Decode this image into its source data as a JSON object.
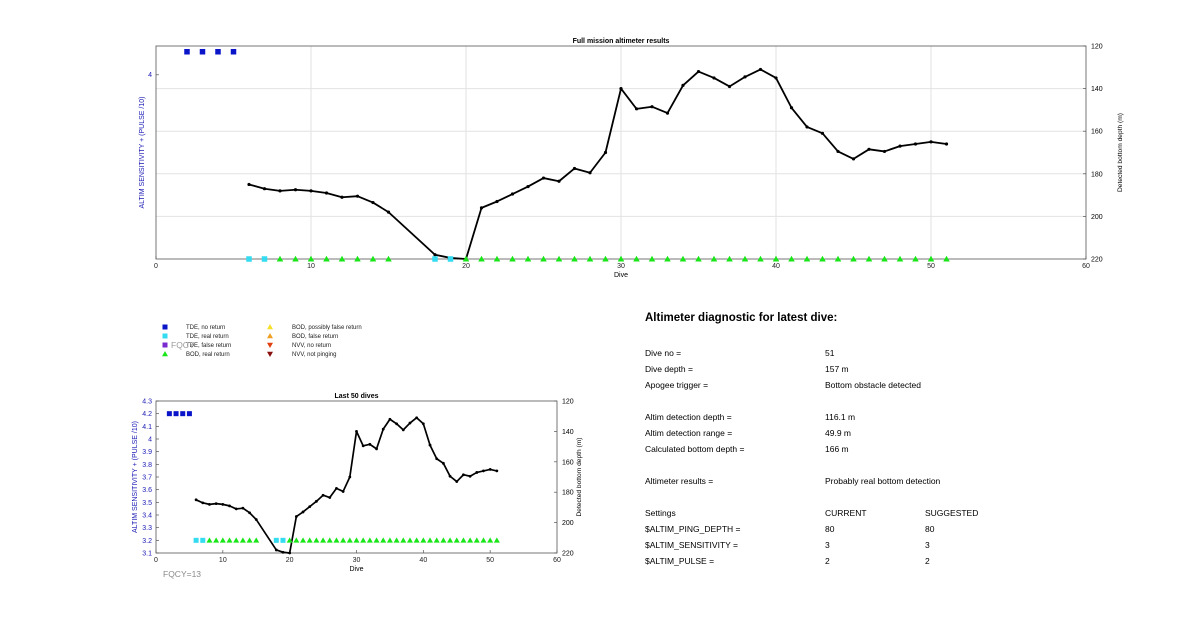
{
  "chart_data": [
    {
      "type": "line",
      "title": "Full mission altimeter results",
      "xlabel": "Dive",
      "ylabel_left": "ALTIM SENSITIVITY + (PULSE /10)",
      "ylabel_right": "Detected bottom depth (m)",
      "xlim": [
        0,
        60
      ],
      "x_ticks": [
        0,
        10,
        20,
        30,
        40,
        50,
        60
      ],
      "left_ylim": [
        2.4,
        4.25
      ],
      "left_y_ticks": [
        4
      ],
      "right_ylim": [
        120,
        220
      ],
      "right_y_ticks": [
        120,
        140,
        160,
        180,
        200,
        220
      ],
      "right_axis_reversed": true,
      "grid": true,
      "series": [
        {
          "name": "Detected bottom depth",
          "axis": "right",
          "x": [
            6,
            7,
            8,
            9,
            10,
            11,
            12,
            13,
            14,
            15,
            18,
            19,
            20,
            21,
            22,
            23,
            24,
            25,
            26,
            27,
            28,
            29,
            30,
            31,
            32,
            33,
            34,
            35,
            36,
            37,
            38,
            39,
            40,
            41,
            42,
            43,
            44,
            45,
            46,
            47,
            48,
            49,
            50,
            51
          ],
          "y": [
            185,
            187,
            188,
            187.5,
            188,
            189,
            191,
            190.5,
            193.5,
            198,
            218,
            219.5,
            220,
            196,
            193,
            189.5,
            186,
            182,
            183.5,
            177.5,
            179.5,
            170,
            140,
            149.5,
            148.5,
            151.5,
            138.5,
            132,
            135,
            139,
            134.5,
            131,
            135,
            149,
            158,
            161,
            169.5,
            173,
            168.5,
            169.5,
            167,
            166,
            165,
            166
          ]
        },
        {
          "name": "TDE, no return",
          "axis": "left",
          "x": [
            2,
            3,
            4,
            5
          ],
          "y": [
            4.2,
            4.2,
            4.2,
            4.2
          ]
        },
        {
          "name": "TDE, real return",
          "axis": "left",
          "x": [
            6,
            7,
            18,
            19
          ],
          "y": [
            2.4,
            2.4,
            2.4,
            2.4
          ]
        },
        {
          "name": "BOD, real return",
          "axis": "left",
          "x": [
            8,
            9,
            10,
            11,
            12,
            13,
            14,
            15,
            20,
            21,
            22,
            23,
            24,
            25,
            26,
            27,
            28,
            29,
            30,
            31,
            32,
            33,
            34,
            35,
            36,
            37,
            38,
            39,
            40,
            41,
            42,
            43,
            44,
            45,
            46,
            47,
            48,
            49,
            50,
            51
          ],
          "y": [
            2.4,
            2.4,
            2.4,
            2.4,
            2.4,
            2.4,
            2.4,
            2.4,
            2.4,
            2.4,
            2.4,
            2.4,
            2.4,
            2.4,
            2.4,
            2.4,
            2.4,
            2.4,
            2.4,
            2.4,
            2.4,
            2.4,
            2.4,
            2.4,
            2.4,
            2.4,
            2.4,
            2.4,
            2.4,
            2.4,
            2.4,
            2.4,
            2.4,
            2.4,
            2.4,
            2.4,
            2.4,
            2.4,
            2.4,
            2.4
          ]
        }
      ]
    },
    {
      "type": "line",
      "title": "Last 50 dives",
      "xlabel": "Dive",
      "ylabel_left": "ALTIM SENSITIVITY + (PULSE /10)",
      "ylabel_right": "Detected bottom depth (m)",
      "xlim": [
        0,
        60
      ],
      "x_ticks": [
        0,
        10,
        20,
        30,
        40,
        50,
        60
      ],
      "left_ylim": [
        3.1,
        4.3
      ],
      "left_y_ticks": [
        3.1,
        3.2,
        3.3,
        3.4,
        3.5,
        3.6,
        3.7,
        3.8,
        3.9,
        4,
        4.1,
        4.2,
        4.3
      ],
      "right_ylim": [
        120,
        220
      ],
      "right_y_ticks": [
        120,
        140,
        160,
        180,
        200,
        220
      ],
      "right_axis_reversed": true,
      "grid": false,
      "series": [
        {
          "name": "Detected bottom depth",
          "axis": "right",
          "x": [
            6,
            7,
            8,
            9,
            10,
            11,
            12,
            13,
            14,
            15,
            18,
            19,
            20,
            21,
            22,
            23,
            24,
            25,
            26,
            27,
            28,
            29,
            30,
            31,
            32,
            33,
            34,
            35,
            36,
            37,
            38,
            39,
            40,
            41,
            42,
            43,
            44,
            45,
            46,
            47,
            48,
            49,
            50,
            51
          ],
          "y": [
            185,
            187,
            188,
            187.5,
            188,
            189,
            191,
            190.5,
            193.5,
            198,
            218,
            219.5,
            220,
            196,
            193,
            189.5,
            186,
            182,
            183.5,
            177.5,
            179.5,
            170,
            140,
            149.5,
            148.5,
            151.5,
            138.5,
            132,
            135,
            139,
            134.5,
            131,
            135,
            149,
            158,
            161,
            169.5,
            173,
            168.5,
            169.5,
            167,
            166,
            165,
            166
          ]
        },
        {
          "name": "TDE, no return",
          "axis": "left",
          "x": [
            2,
            3,
            4,
            5
          ],
          "y": [
            4.2,
            4.2,
            4.2,
            4.2
          ]
        },
        {
          "name": "TDE, real return",
          "axis": "left",
          "x": [
            6,
            7,
            18,
            19
          ],
          "y": [
            3.2,
            3.2,
            3.2,
            3.2
          ]
        },
        {
          "name": "BOD, real return",
          "axis": "left",
          "x": [
            8,
            9,
            10,
            11,
            12,
            13,
            14,
            15,
            20,
            21,
            22,
            23,
            24,
            25,
            26,
            27,
            28,
            29,
            30,
            31,
            32,
            33,
            34,
            35,
            36,
            37,
            38,
            39,
            40,
            41,
            42,
            43,
            44,
            45,
            46,
            47,
            48,
            49,
            50,
            51
          ],
          "y": [
            3.2,
            3.2,
            3.2,
            3.2,
            3.2,
            3.2,
            3.2,
            3.2,
            3.2,
            3.2,
            3.2,
            3.2,
            3.2,
            3.2,
            3.2,
            3.2,
            3.2,
            3.2,
            3.2,
            3.2,
            3.2,
            3.2,
            3.2,
            3.2,
            3.2,
            3.2,
            3.2,
            3.2,
            3.2,
            3.2,
            3.2,
            3.2,
            3.2,
            3.2,
            3.2,
            3.2,
            3.2,
            3.2,
            3.2,
            3.2
          ]
        }
      ]
    }
  ],
  "legend": {
    "items": [
      {
        "label": "TDE, no return",
        "marker": "square",
        "color": "#0a14c8"
      },
      {
        "label": "TDE, real return",
        "marker": "square",
        "color": "#33dcf0"
      },
      {
        "label": "TDE, false return",
        "marker": "square",
        "color": "#7a2bd0"
      },
      {
        "label": "BOD, real return",
        "marker": "triangle-up",
        "color": "#19e619"
      },
      {
        "label": "BOD, possibly false return",
        "marker": "triangle-up",
        "color": "#f5e02a"
      },
      {
        "label": "BOD, false return",
        "marker": "triangle-up",
        "color": "#f0a020"
      },
      {
        "label": "NVV, no return",
        "marker": "triangle-down",
        "color": "#e04010"
      },
      {
        "label": "NVV, not pinging",
        "marker": "triangle-down",
        "color": "#8a1010"
      }
    ]
  },
  "fqcy_label": "FQCY=13",
  "fqcy_ghost": "FQCY",
  "diagnostic": {
    "title": "Altimeter diagnostic for latest dive:",
    "rows": [
      {
        "label": "Dive no =",
        "value": "51"
      },
      {
        "label": "Dive depth =",
        "value": "157 m"
      },
      {
        "label": "Apogee trigger =",
        "value": "Bottom obstacle detected"
      },
      {
        "label": "Altim detection depth =",
        "value": "116.1 m"
      },
      {
        "label": "Altim detection range =",
        "value": "49.9 m"
      },
      {
        "label": "Calculated bottom depth =",
        "value": "166 m"
      },
      {
        "label": "Altimeter results =",
        "value": "Probably real bottom detection"
      }
    ],
    "settings_header": {
      "label": "Settings",
      "current": "CURRENT",
      "suggested": "SUGGESTED"
    },
    "settings": [
      {
        "label": "$ALTIM_PING_DEPTH =",
        "current": "80",
        "suggested": "80"
      },
      {
        "label": "$ALTIM_SENSITIVITY =",
        "current": "3",
        "suggested": "3"
      },
      {
        "label": "$ALTIM_PULSE =",
        "current": "2",
        "suggested": "2"
      }
    ]
  },
  "colors": {
    "line": "#000000",
    "axis_text_left": "#1a1ab4",
    "axis_text_right": "#000000",
    "grid": "#e2e2e2",
    "fqcy": "#8a8a8a"
  }
}
